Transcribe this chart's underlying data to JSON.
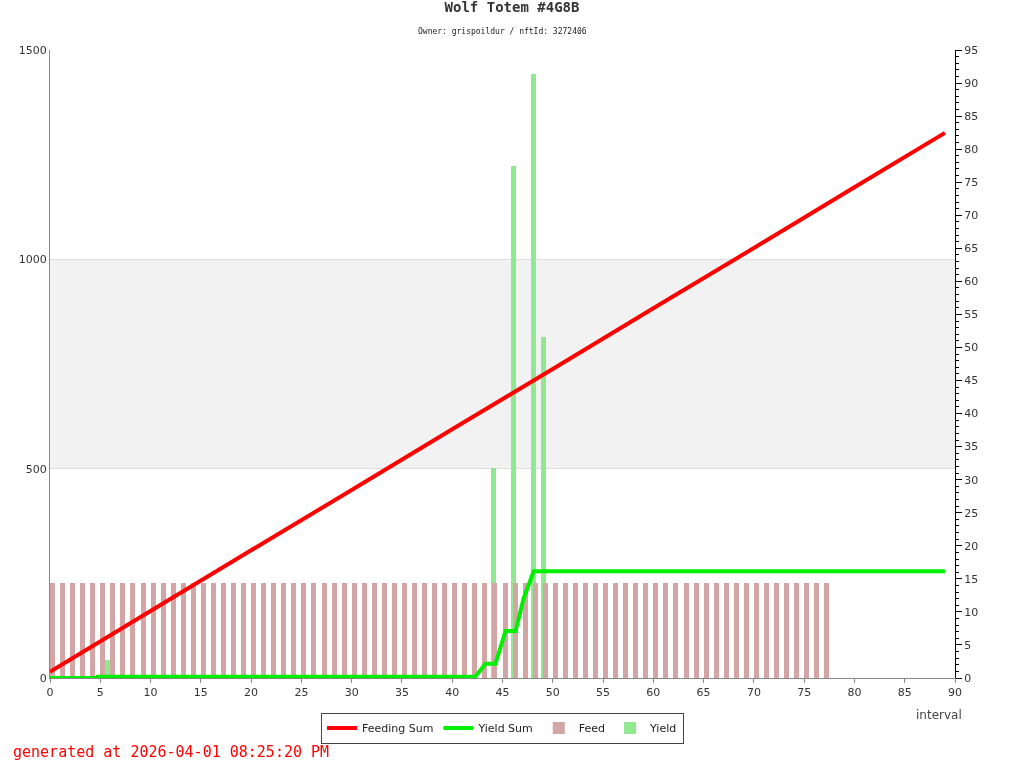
{
  "chart_data": {
    "type": "line",
    "title": "Wolf Totem #4G8B",
    "subtitle": "Owner: grispoildur / nftId: 3272406",
    "xlabel": "interval",
    "xlim": [
      0,
      90
    ],
    "xticks": [
      0,
      5,
      10,
      15,
      20,
      25,
      30,
      35,
      40,
      45,
      50,
      55,
      60,
      65,
      70,
      75,
      80,
      85,
      90
    ],
    "ylim": [
      0,
      1500
    ],
    "yticks": [
      0,
      500,
      1000,
      1500
    ],
    "y2lim": [
      0,
      95
    ],
    "y2ticks": [
      0,
      5,
      10,
      15,
      20,
      25,
      30,
      35,
      40,
      45,
      50,
      55,
      60,
      65,
      70,
      75,
      80,
      85,
      90,
      95
    ],
    "grid": "y",
    "legend": "bottom",
    "marker": "none",
    "line_style": "solid",
    "bands": [
      {
        "axis": "y",
        "from": 500,
        "to": 1000,
        "color": "#f2f2f2"
      }
    ],
    "series": [
      {
        "name": "Feeding Sum",
        "color": "#ff0000",
        "x": [
          0,
          10,
          20,
          30,
          40,
          50,
          60,
          70,
          80,
          89
        ],
        "values": [
          15,
          160,
          305,
          449,
          594,
          738,
          883,
          1027,
          1172,
          1302
        ]
      },
      {
        "name": "Yield Sum",
        "color": "#00ee00",
        "x": [
          0,
          4.6,
          4.7,
          42.3,
          43.3,
          44.3,
          45.3,
          46.3,
          47.1,
          48.1,
          89
        ],
        "values": [
          0,
          0,
          3,
          3,
          34,
          34,
          112,
          112,
          190,
          255,
          255
        ]
      },
      {
        "name": "Feed",
        "type": "bar",
        "axis": "y2",
        "color": "#d4a5a5",
        "x": [
          0.25,
          1.25,
          2.25,
          3.25,
          4.25,
          5.25,
          6.25,
          7.25,
          8.25,
          9.25,
          10.25,
          11.25,
          12.25,
          13.25,
          14.25,
          15.25,
          16.25,
          17.25,
          18.25,
          19.25,
          20.25,
          21.25,
          22.25,
          23.25,
          24.25,
          25.25,
          26.25,
          27.25,
          28.25,
          29.25,
          30.25,
          31.25,
          32.25,
          33.25,
          34.25,
          35.25,
          36.25,
          37.25,
          38.25,
          39.25,
          40.25,
          41.25,
          42.25,
          43.25,
          44.25,
          45.25,
          46.25,
          47.25,
          48.25,
          49.25,
          50.25,
          51.25,
          52.25,
          53.25,
          54.25,
          55.25,
          56.25,
          57.25,
          58.25,
          59.25,
          60.25,
          61.25,
          62.25,
          63.25,
          64.25,
          65.25,
          66.25,
          67.25,
          68.25,
          69.25,
          70.25,
          71.25,
          72.25,
          73.25,
          74.25,
          75.25,
          76.25,
          77.25
        ],
        "values": [
          14.4,
          14.4,
          14.4,
          14.4,
          14.4,
          14.4,
          14.4,
          14.4,
          14.4,
          14.4,
          14.4,
          14.4,
          14.4,
          14.4,
          14.4,
          14.4,
          14.4,
          14.4,
          14.4,
          14.4,
          14.4,
          14.4,
          14.4,
          14.4,
          14.4,
          14.4,
          14.4,
          14.4,
          14.4,
          14.4,
          14.4,
          14.4,
          14.4,
          14.4,
          14.4,
          14.4,
          14.4,
          14.4,
          14.4,
          14.4,
          14.4,
          14.4,
          14.4,
          14.4,
          14.4,
          14.4,
          14.4,
          14.4,
          14.4,
          14.4,
          14.4,
          14.4,
          14.4,
          14.4,
          14.4,
          14.4,
          14.4,
          14.4,
          14.4,
          14.4,
          14.4,
          14.4,
          14.4,
          14.4,
          14.4,
          14.4,
          14.4,
          14.4,
          14.4,
          14.4,
          14.4,
          14.4,
          14.4,
          14.4,
          14.4,
          14.4,
          14.4,
          14.4
        ]
      },
      {
        "name": "Yield",
        "type": "bar",
        "axis": "y2",
        "color": "#90e890",
        "x": [
          5.7,
          44.1,
          46.1,
          48.1,
          49.1
        ],
        "values": [
          2.7,
          31.8,
          77.4,
          91.4,
          51.6
        ]
      }
    ],
    "annotations": [
      "generated at 2026-04-01 08:25:20 PM"
    ]
  }
}
